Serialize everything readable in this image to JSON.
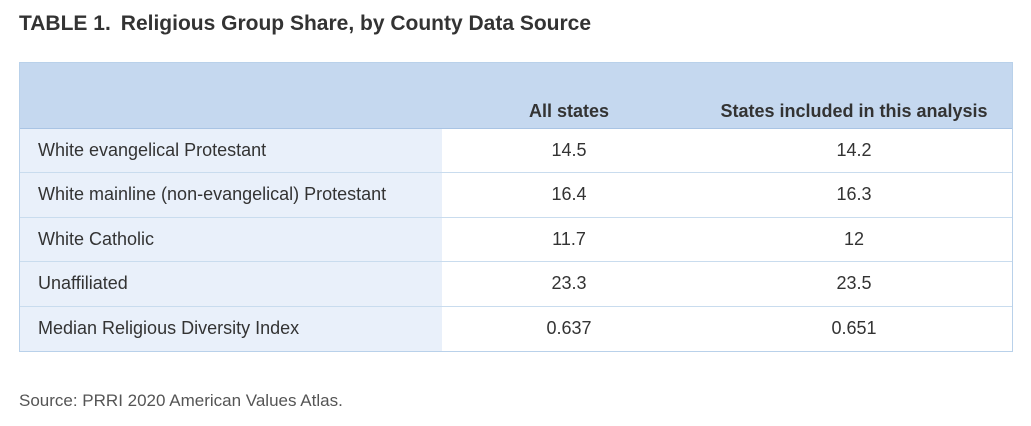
{
  "title": {
    "label": "TABLE 1.",
    "text": "Religious Group Share, by County Data Source"
  },
  "table": {
    "columns": [
      "",
      "All states",
      "States included in this analysis"
    ],
    "rows": [
      {
        "label": "White evangelical Protestant",
        "all_states": "14.5",
        "included": "14.2"
      },
      {
        "label": "White mainline (non-evangelical) Protestant",
        "all_states": "16.4",
        "included": "16.3"
      },
      {
        "label": "White Catholic",
        "all_states": "11.7",
        "included": "12"
      },
      {
        "label": "Unaffiliated",
        "all_states": "23.3",
        "included": "23.5"
      },
      {
        "label": "Median Religious Diversity Index",
        "all_states": "0.637",
        "included": "0.651"
      }
    ]
  },
  "source": "Source: PRRI 2020 American Values Atlas.",
  "colors": {
    "header_bg": "#c5d8ef",
    "label_col_bg": "#e9f0fa",
    "border": "#b9d1ea"
  }
}
